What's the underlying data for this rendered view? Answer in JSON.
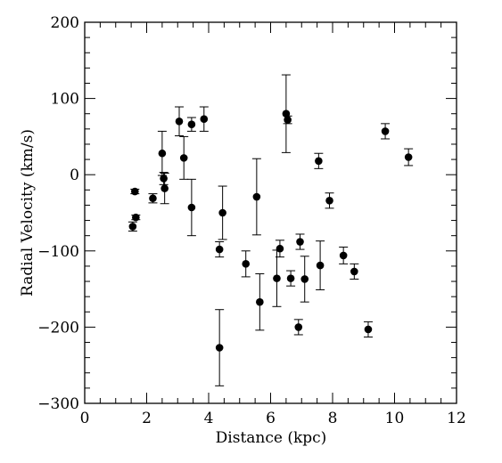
{
  "chart_data": {
    "type": "scatter",
    "xlabel": "Distance (kpc)",
    "ylabel": "Radial Velocity (km/s)",
    "xlim": [
      0,
      12
    ],
    "ylim": [
      -300,
      200
    ],
    "x_ticks": [
      0,
      2,
      4,
      6,
      8,
      10,
      12
    ],
    "y_ticks": [
      -300,
      -200,
      -100,
      0,
      100,
      200
    ],
    "x_tick_labels": [
      "0",
      "2",
      "4",
      "6",
      "8",
      "10",
      "12"
    ],
    "y_tick_labels": [
      "−300",
      "−200",
      "−100",
      "0",
      "100",
      "200"
    ],
    "x_minor_step": 0.5,
    "y_minor_step": 20,
    "grid": false,
    "legend": "none",
    "marker_color": "#000000",
    "points": [
      {
        "x": 1.55,
        "y": -68,
        "err": 6
      },
      {
        "x": 1.62,
        "y": -22,
        "err": 3
      },
      {
        "x": 1.65,
        "y": -56,
        "err": 3
      },
      {
        "x": 2.2,
        "y": -31,
        "err": 6
      },
      {
        "x": 2.5,
        "y": 28,
        "err": 29
      },
      {
        "x": 2.55,
        "y": -5,
        "err": 8
      },
      {
        "x": 2.58,
        "y": -18,
        "err": 20
      },
      {
        "x": 3.05,
        "y": 70,
        "err": 19
      },
      {
        "x": 3.2,
        "y": 22,
        "err": 28
      },
      {
        "x": 3.45,
        "y": 66,
        "err": 9
      },
      {
        "x": 3.45,
        "y": -43,
        "err": 37
      },
      {
        "x": 3.85,
        "y": 73,
        "err": 16
      },
      {
        "x": 4.35,
        "y": -98,
        "err": 10
      },
      {
        "x": 4.35,
        "y": -227,
        "err": 50
      },
      {
        "x": 4.45,
        "y": -50,
        "err": 35
      },
      {
        "x": 5.2,
        "y": -117,
        "err": 17
      },
      {
        "x": 5.55,
        "y": -29,
        "err": 50
      },
      {
        "x": 5.65,
        "y": -167,
        "err": 37
      },
      {
        "x": 6.2,
        "y": -136,
        "err": 37
      },
      {
        "x": 6.3,
        "y": -97,
        "err": 11
      },
      {
        "x": 6.5,
        "y": 80,
        "err": 51
      },
      {
        "x": 6.55,
        "y": 72,
        "err": 5
      },
      {
        "x": 6.65,
        "y": -136,
        "err": 10
      },
      {
        "x": 6.9,
        "y": -200,
        "err": 10
      },
      {
        "x": 6.95,
        "y": -88,
        "err": 10
      },
      {
        "x": 7.1,
        "y": -137,
        "err": 30
      },
      {
        "x": 7.55,
        "y": 18,
        "err": 10
      },
      {
        "x": 7.6,
        "y": -119,
        "err": 32
      },
      {
        "x": 7.9,
        "y": -34,
        "err": 10
      },
      {
        "x": 8.35,
        "y": -106,
        "err": 11
      },
      {
        "x": 8.7,
        "y": -127,
        "err": 10
      },
      {
        "x": 9.15,
        "y": -203,
        "err": 10
      },
      {
        "x": 9.7,
        "y": 57,
        "err": 10
      },
      {
        "x": 10.45,
        "y": 23,
        "err": 11
      }
    ]
  }
}
